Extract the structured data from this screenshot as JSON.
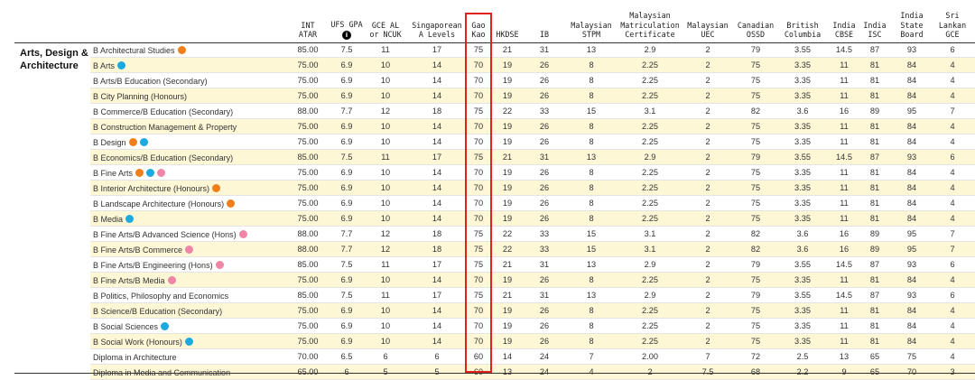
{
  "columns": [
    {
      "key": "atar",
      "label": [
        "INT",
        "ATAR"
      ],
      "center": 341,
      "width": 36
    },
    {
      "key": "ufs",
      "label": [
        "UFS GPA"
      ],
      "center": 384,
      "width": 44,
      "info": true,
      "info_glyph": "i"
    },
    {
      "key": "gce",
      "label": [
        "GCE AL",
        "or NCUK"
      ],
      "center": 427,
      "width": 40
    },
    {
      "key": "sg",
      "label": [
        "Singaporean",
        "A Levels"
      ],
      "center": 484,
      "width": 62
    },
    {
      "key": "gaokao",
      "label": [
        "Gao",
        "Kao"
      ],
      "center": 530,
      "width": 28
    },
    {
      "key": "hkdse",
      "label": [
        "HKDSE"
      ],
      "center": 562,
      "width": 32
    },
    {
      "key": "ib",
      "label": [
        "IB"
      ],
      "center": 603,
      "width": 30
    },
    {
      "key": "stpm",
      "label": [
        "Malaysian",
        "STPM"
      ],
      "center": 655,
      "width": 50
    },
    {
      "key": "mmc",
      "label": [
        "Malaysian",
        "Matriculation",
        "Certificate"
      ],
      "center": 720,
      "width": 72
    },
    {
      "key": "uec",
      "label": [
        "Malaysian",
        "UEC"
      ],
      "center": 784,
      "width": 48
    },
    {
      "key": "ossd",
      "label": [
        "Canadian",
        "OSSD"
      ],
      "center": 837,
      "width": 44
    },
    {
      "key": "bc",
      "label": [
        "British",
        "Columbia"
      ],
      "center": 889,
      "width": 46
    },
    {
      "key": "cbse",
      "label": [
        "India",
        "CBSE"
      ],
      "center": 935,
      "width": 32
    },
    {
      "key": "isc",
      "label": [
        "India",
        "ISC"
      ],
      "center": 969,
      "width": 30
    },
    {
      "key": "isb",
      "label": [
        "India",
        "State",
        "Board"
      ],
      "center": 1010,
      "width": 34
    },
    {
      "key": "gce_lk",
      "label": [
        "Sri",
        "Lankan",
        "GCE"
      ],
      "center": 1055,
      "width": 34
    }
  ],
  "section_title": "Arts, Design & Architecture",
  "dot_colors": {
    "orange": "#f07f1b",
    "blue": "#1aaadf",
    "pink": "#ef86a7"
  },
  "highlight_color": "#e0211c",
  "rows": [
    {
      "name": "B Architectural Studies",
      "dots": [
        "orange"
      ],
      "values": [
        "85.00",
        "7.5",
        "11",
        "17",
        "75",
        "21",
        "31",
        "13",
        "2.9",
        "2",
        "79",
        "3.55",
        "14.5",
        "87",
        "93",
        "6"
      ]
    },
    {
      "name": "B Arts",
      "dots": [
        "blue"
      ],
      "values": [
        "75.00",
        "6.9",
        "10",
        "14",
        "70",
        "19",
        "26",
        "8",
        "2.25",
        "2",
        "75",
        "3.35",
        "11",
        "81",
        "84",
        "4"
      ]
    },
    {
      "name": "B Arts/B Education (Secondary)",
      "dots": [],
      "values": [
        "75.00",
        "6.9",
        "10",
        "14",
        "70",
        "19",
        "26",
        "8",
        "2.25",
        "2",
        "75",
        "3.35",
        "11",
        "81",
        "84",
        "4"
      ]
    },
    {
      "name": "B City Planning (Honours)",
      "dots": [],
      "values": [
        "75.00",
        "6.9",
        "10",
        "14",
        "70",
        "19",
        "26",
        "8",
        "2.25",
        "2",
        "75",
        "3.35",
        "11",
        "81",
        "84",
        "4"
      ]
    },
    {
      "name": "B Commerce/B Education (Secondary)",
      "dots": [],
      "values": [
        "88.00",
        "7.7",
        "12",
        "18",
        "75",
        "22",
        "33",
        "15",
        "3.1",
        "2",
        "82",
        "3.6",
        "16",
        "89",
        "95",
        "7"
      ]
    },
    {
      "name": "B Construction Management & Property",
      "dots": [],
      "values": [
        "75.00",
        "6.9",
        "10",
        "14",
        "70",
        "19",
        "26",
        "8",
        "2.25",
        "2",
        "75",
        "3.35",
        "11",
        "81",
        "84",
        "4"
      ]
    },
    {
      "name": "B Design",
      "dots": [
        "orange",
        "blue"
      ],
      "values": [
        "75.00",
        "6.9",
        "10",
        "14",
        "70",
        "19",
        "26",
        "8",
        "2.25",
        "2",
        "75",
        "3.35",
        "11",
        "81",
        "84",
        "4"
      ]
    },
    {
      "name": "B Economics/B Education (Secondary)",
      "dots": [],
      "values": [
        "85.00",
        "7.5",
        "11",
        "17",
        "75",
        "21",
        "31",
        "13",
        "2.9",
        "2",
        "79",
        "3.55",
        "14.5",
        "87",
        "93",
        "6"
      ]
    },
    {
      "name": "B Fine Arts",
      "dots": [
        "orange",
        "blue",
        "pink"
      ],
      "values": [
        "75.00",
        "6.9",
        "10",
        "14",
        "70",
        "19",
        "26",
        "8",
        "2.25",
        "2",
        "75",
        "3.35",
        "11",
        "81",
        "84",
        "4"
      ]
    },
    {
      "name": "B Interior Architecture (Honours)",
      "dots": [
        "orange"
      ],
      "values": [
        "75.00",
        "6.9",
        "10",
        "14",
        "70",
        "19",
        "26",
        "8",
        "2.25",
        "2",
        "75",
        "3.35",
        "11",
        "81",
        "84",
        "4"
      ]
    },
    {
      "name": "B Landscape Architecture (Honours)",
      "dots": [
        "orange"
      ],
      "values": [
        "75.00",
        "6.9",
        "10",
        "14",
        "70",
        "19",
        "26",
        "8",
        "2.25",
        "2",
        "75",
        "3.35",
        "11",
        "81",
        "84",
        "4"
      ]
    },
    {
      "name": "B Media",
      "dots": [
        "blue"
      ],
      "values": [
        "75.00",
        "6.9",
        "10",
        "14",
        "70",
        "19",
        "26",
        "8",
        "2.25",
        "2",
        "75",
        "3.35",
        "11",
        "81",
        "84",
        "4"
      ]
    },
    {
      "name": "B Fine Arts/B Advanced Science (Hons)",
      "dots": [
        "pink"
      ],
      "values": [
        "88.00",
        "7.7",
        "12",
        "18",
        "75",
        "22",
        "33",
        "15",
        "3.1",
        "2",
        "82",
        "3.6",
        "16",
        "89",
        "95",
        "7"
      ]
    },
    {
      "name": "B Fine Arts/B Commerce",
      "dots": [
        "pink"
      ],
      "values": [
        "88.00",
        "7.7",
        "12",
        "18",
        "75",
        "22",
        "33",
        "15",
        "3.1",
        "2",
        "82",
        "3.6",
        "16",
        "89",
        "95",
        "7"
      ]
    },
    {
      "name": "B Fine Arts/B Engineering (Hons)",
      "dots": [
        "pink"
      ],
      "values": [
        "85.00",
        "7.5",
        "11",
        "17",
        "75",
        "21",
        "31",
        "13",
        "2.9",
        "2",
        "79",
        "3.55",
        "14.5",
        "87",
        "93",
        "6"
      ]
    },
    {
      "name": "B Fine Arts/B Media",
      "dots": [
        "pink"
      ],
      "values": [
        "75.00",
        "6.9",
        "10",
        "14",
        "70",
        "19",
        "26",
        "8",
        "2.25",
        "2",
        "75",
        "3.35",
        "11",
        "81",
        "84",
        "4"
      ]
    },
    {
      "name": "B Politics, Philosophy and Economics",
      "dots": [],
      "values": [
        "85.00",
        "7.5",
        "11",
        "17",
        "75",
        "21",
        "31",
        "13",
        "2.9",
        "2",
        "79",
        "3.55",
        "14.5",
        "87",
        "93",
        "6"
      ]
    },
    {
      "name": "B Science/B Education (Secondary)",
      "dots": [],
      "values": [
        "75.00",
        "6.9",
        "10",
        "14",
        "70",
        "19",
        "26",
        "8",
        "2.25",
        "2",
        "75",
        "3.35",
        "11",
        "81",
        "84",
        "4"
      ]
    },
    {
      "name": "B Social Sciences",
      "dots": [
        "blue"
      ],
      "values": [
        "75.00",
        "6.9",
        "10",
        "14",
        "70",
        "19",
        "26",
        "8",
        "2.25",
        "2",
        "75",
        "3.35",
        "11",
        "81",
        "84",
        "4"
      ]
    },
    {
      "name": "B Social Work (Honours)",
      "dots": [
        "blue"
      ],
      "values": [
        "75.00",
        "6.9",
        "10",
        "14",
        "70",
        "19",
        "26",
        "8",
        "2.25",
        "2",
        "75",
        "3.35",
        "11",
        "81",
        "84",
        "4"
      ]
    },
    {
      "name": "Diploma in Architecture",
      "dots": [],
      "values": [
        "70.00",
        "6.5",
        "6",
        "6",
        "60",
        "14",
        "24",
        "7",
        "2.00",
        "7",
        "72",
        "2.5",
        "13",
        "65",
        "75",
        "4"
      ]
    },
    {
      "name": "Diploma in Media and Communication",
      "dots": [],
      "values": [
        "65.00",
        "6",
        "5",
        "5",
        "60",
        "13",
        "24",
        "4",
        "2",
        "7.5",
        "68",
        "2.2",
        "9",
        "65",
        "70",
        "3"
      ]
    }
  ]
}
